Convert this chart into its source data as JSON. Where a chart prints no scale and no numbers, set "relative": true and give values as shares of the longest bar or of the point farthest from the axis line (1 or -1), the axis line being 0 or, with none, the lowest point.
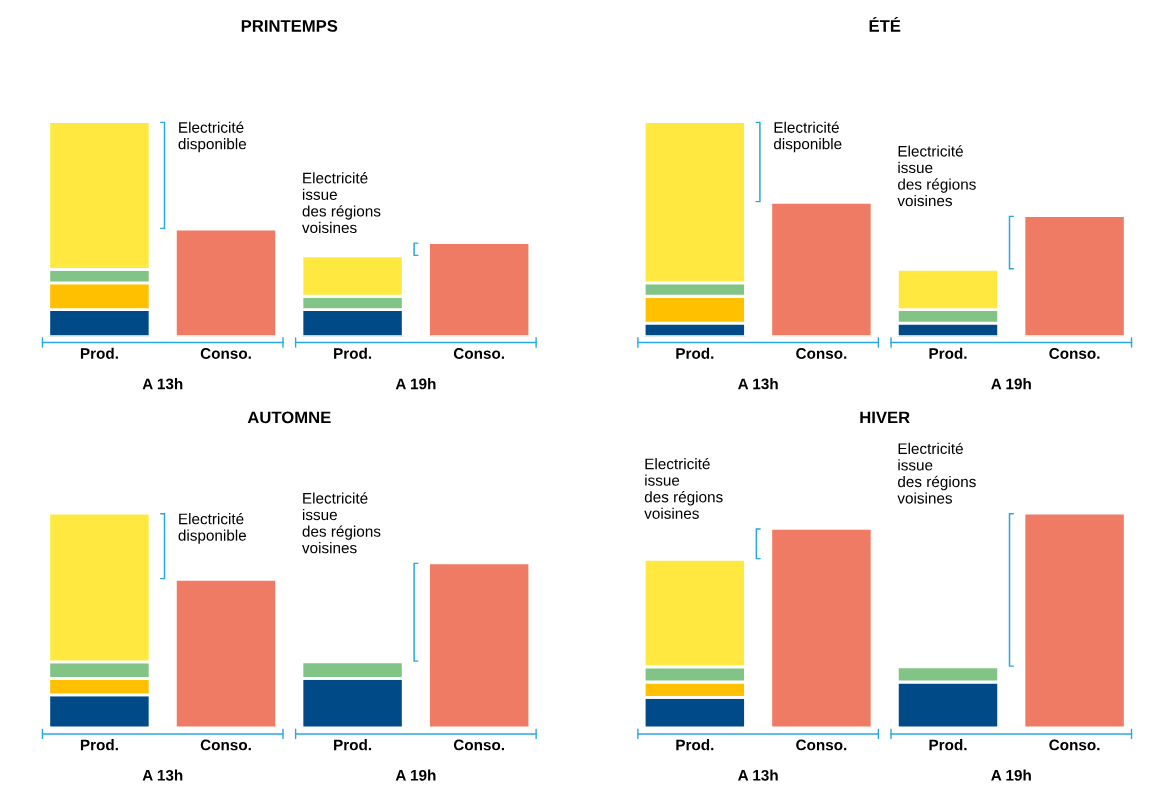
{
  "chart_data": [
    {
      "type": "bar",
      "title": "PRINTEMPS",
      "stacked": true,
      "relative": true,
      "categories": [
        "Prod.",
        "Conso.",
        "Prod.",
        "Conso."
      ],
      "annotations": [
        "A 13h",
        "A 19h",
        "Electricité\ndisponible",
        "Electricité\nissue\ndes régions\nvoisines"
      ],
      "series": [
        {
          "color": "#004b87",
          "values": [
            0.125,
            null,
            0.125,
            null
          ]
        },
        {
          "color": "#ffc000",
          "values": [
            0.125,
            null,
            null,
            null
          ]
        },
        {
          "color": "#82c485",
          "values": [
            0.0625,
            null,
            0.0625,
            null
          ]
        },
        {
          "color": "#ffe941",
          "values": [
            0.6875,
            null,
            0.1875,
            null
          ]
        },
        {
          "color": "#f07b64",
          "values": [
            null,
            0.5,
            null,
            0.4375
          ]
        }
      ]
    },
    {
      "type": "bar",
      "title": "ÉTÉ",
      "stacked": true,
      "relative": true,
      "categories": [
        "Prod.",
        "Conso.",
        "Prod.",
        "Conso."
      ],
      "annotations": [
        "A 13h",
        "A 19h",
        "Electricité\ndisponible",
        "Electricité\nissue\ndes régions\nvoisines"
      ],
      "series": [
        {
          "color": "#004b87",
          "values": [
            0.0625,
            null,
            0.0625,
            null
          ]
        },
        {
          "color": "#ffc000",
          "values": [
            0.125,
            null,
            null,
            null
          ]
        },
        {
          "color": "#82c485",
          "values": [
            0.0625,
            null,
            0.0625,
            null
          ]
        },
        {
          "color": "#ffe941",
          "values": [
            0.75,
            null,
            0.1875,
            null
          ]
        },
        {
          "color": "#f07b64",
          "values": [
            null,
            0.625,
            null,
            0.5625
          ]
        }
      ]
    },
    {
      "type": "bar",
      "title": "AUTOMNE",
      "stacked": true,
      "relative": true,
      "categories": [
        "Prod.",
        "Conso.",
        "Prod.",
        "Conso."
      ],
      "annotations": [
        "A 13h",
        "A 19h",
        "Electricité\ndisponible",
        "Electricité\nissue\ndes régions\nvoisines"
      ],
      "series": [
        {
          "color": "#004b87",
          "values": [
            0.154,
            null,
            0.231,
            null
          ]
        },
        {
          "color": "#ffc000",
          "values": [
            0.077,
            null,
            null,
            null
          ]
        },
        {
          "color": "#82c485",
          "values": [
            0.077,
            null,
            0.077,
            null
          ]
        },
        {
          "color": "#ffe941",
          "values": [
            0.692,
            null,
            null,
            null
          ]
        },
        {
          "color": "#f07b64",
          "values": [
            null,
            0.692,
            null,
            0.769
          ]
        }
      ]
    },
    {
      "type": "bar",
      "title": "HIVER",
      "stacked": true,
      "relative": true,
      "categories": [
        "Prod.",
        "Conso.",
        "Prod.",
        "Conso."
      ],
      "annotations": [
        "A 13h",
        "A 19h",
        "Electricité\nissue\ndes régions\nvoisines",
        "Electricité\nissue\ndes régions\nvoisines"
      ],
      "series": [
        {
          "color": "#004b87",
          "values": [
            0.143,
            null,
            0.214,
            null
          ]
        },
        {
          "color": "#ffc000",
          "values": [
            0.071,
            null,
            null,
            null
          ]
        },
        {
          "color": "#82c485",
          "values": [
            0.071,
            null,
            0.071,
            null
          ]
        },
        {
          "color": "#ffe941",
          "values": [
            0.5,
            null,
            null,
            null
          ]
        },
        {
          "color": "#f07b64",
          "values": [
            null,
            0.929,
            null,
            1.0
          ]
        }
      ]
    }
  ]
}
